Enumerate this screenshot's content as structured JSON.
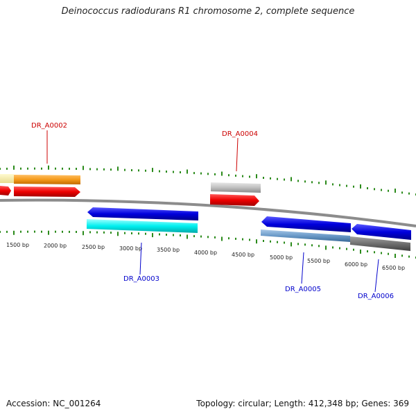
{
  "title": "Deinococcus radiodurans R1 chromosome 2, complete sequence",
  "footer": {
    "accession": "Accession: NC_001264",
    "stats": "Topology: circular; Length: 412,348 bp; Genes: 369"
  },
  "colors": {
    "backbone": "#888888",
    "tick": "#2a8a1a",
    "forward_label": "#cc0000",
    "reverse_label": "#0000cc"
  },
  "ruler_labels": [
    "1500 bp",
    "2000 bp",
    "2500 bp",
    "3000 bp",
    "3500 bp",
    "4000 bp",
    "4500 bp",
    "5000 bp",
    "5500 bp",
    "6000 bp",
    "6500 bp"
  ],
  "genes": [
    {
      "name": "DR_A0002",
      "strand": "forward",
      "color": "#ee0000"
    },
    {
      "name": "DR_A0003",
      "strand": "reverse",
      "color": "#0000dd"
    },
    {
      "name": "DR_A0004",
      "strand": "forward",
      "color": "#ee0000"
    },
    {
      "name": "DR_A0005",
      "strand": "reverse",
      "color": "#0000dd"
    },
    {
      "name": "DR_A0006",
      "strand": "reverse",
      "color": "#0000dd"
    }
  ]
}
